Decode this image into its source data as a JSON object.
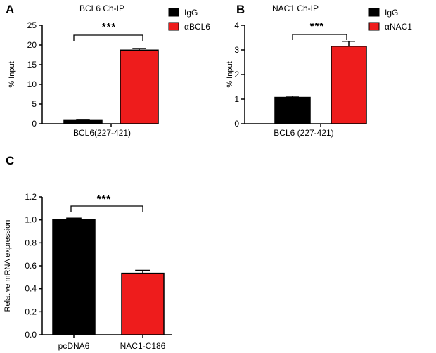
{
  "colors": {
    "igg": "#000000",
    "treatment": "#ee1c1c",
    "axis": "#000000"
  },
  "chart_data": [
    {
      "panel": "A",
      "type": "bar",
      "title": "BCL6 Ch-IP",
      "ylabel": "% Input",
      "xlabel": "BCL6(227-421)",
      "ylim": [
        0,
        25
      ],
      "yticks": [
        "0",
        "5",
        "10",
        "15",
        "20",
        "25"
      ],
      "significance": "***",
      "legend": [
        "IgG",
        "αBCL6"
      ],
      "series": [
        {
          "name": "IgG",
          "value": 1.0,
          "error": 0.1,
          "color": "#000000"
        },
        {
          "name": "αBCL6",
          "value": 18.7,
          "error": 0.4,
          "color": "#ee1c1c"
        }
      ]
    },
    {
      "panel": "B",
      "type": "bar",
      "title": "NAC1 Ch-IP",
      "ylabel": "% Input",
      "xlabel": "BCL6 (227-421)",
      "ylim": [
        0,
        4
      ],
      "yticks": [
        "0",
        "1",
        "2",
        "3",
        "4"
      ],
      "significance": "***",
      "legend": [
        "IgG",
        "αNAC1"
      ],
      "series": [
        {
          "name": "IgG",
          "value": 1.07,
          "error": 0.05,
          "color": "#000000"
        },
        {
          "name": "αNAC1",
          "value": 3.15,
          "error": 0.2,
          "color": "#ee1c1c"
        }
      ]
    },
    {
      "panel": "C",
      "type": "bar",
      "title": "",
      "ylabel": "Relative mRNA expression",
      "ylim": [
        0,
        1.2
      ],
      "yticks": [
        "0.0",
        "0.2",
        "0.4",
        "0.6",
        "0.8",
        "1.0",
        "1.2"
      ],
      "significance": "***",
      "categories": [
        "pcDNA6",
        "NAC1-C186"
      ],
      "series": [
        {
          "name": "pcDNA6",
          "value": 1.0,
          "error": 0.015,
          "color": "#000000"
        },
        {
          "name": "NAC1-C186",
          "value": 0.535,
          "error": 0.025,
          "color": "#ee1c1c"
        }
      ]
    }
  ]
}
